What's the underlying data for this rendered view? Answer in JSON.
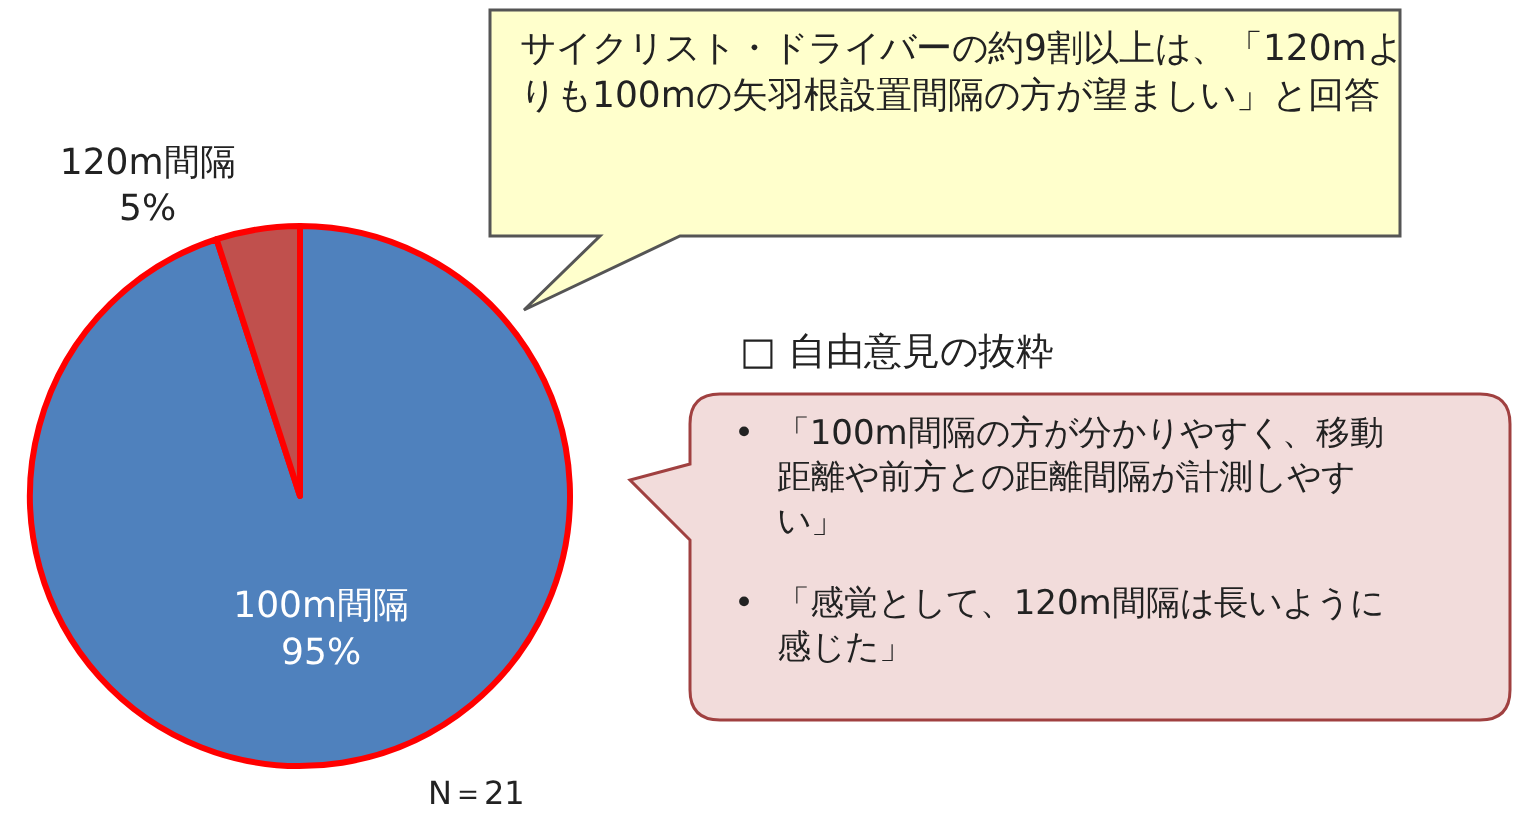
{
  "chart_data": {
    "type": "pie",
    "categories": [
      "100m間隔",
      "120m間隔"
    ],
    "values": [
      95,
      5
    ],
    "colors": [
      "#4f81bd",
      "#c0504d"
    ],
    "value_labels": [
      "95%",
      "5%"
    ],
    "annotations": [
      "サイクリスト・ドライバーの約9割以上は、「120mよりも100mの矢羽根設置間隔の方が望ましい」と回答",
      "□ 自由意見の抜粋",
      "•  「100m間隔の方が分かりやすく、移動距離や前方との距離間隔が計測しやすい」",
      "•  「感覚として、120m間隔は長いように感じた」",
      "N＝21"
    ]
  }
}
